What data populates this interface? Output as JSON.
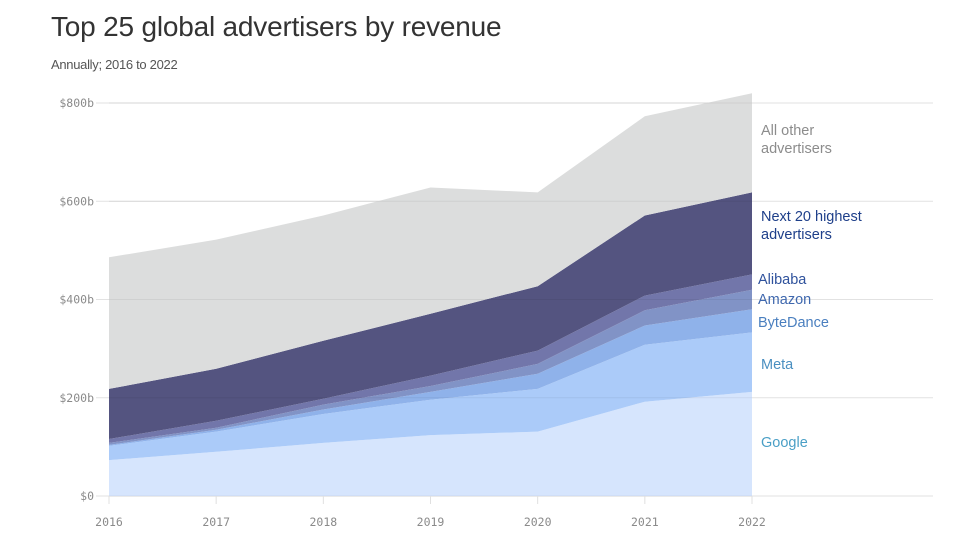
{
  "chart_data": {
    "type": "area",
    "stacked": true,
    "title": "Top 25 global advertisers by revenue",
    "subtitle": "Annually; 2016 to 2022",
    "xlabel": "",
    "ylabel": "",
    "x": [
      "2016",
      "2017",
      "2018",
      "2019",
      "2020",
      "2021",
      "2022"
    ],
    "ylim": [
      0,
      800
    ],
    "yticks": [
      {
        "value": 0,
        "label": "$0"
      },
      {
        "value": 200,
        "label": "$200b"
      },
      {
        "value": 400,
        "label": "$400b"
      },
      {
        "value": 600,
        "label": "$600b"
      },
      {
        "value": 800,
        "label": "$800b"
      }
    ],
    "grid": true,
    "legend": "direct-labels-right",
    "series": [
      {
        "name": "Google",
        "label_lines": [
          "Google"
        ],
        "color": "#d6e5fd",
        "label_color": "#4a9fc6",
        "values": [
          73,
          90,
          108,
          124,
          131,
          192,
          212
        ]
      },
      {
        "name": "Meta",
        "label_lines": [
          "Meta"
        ],
        "color": "#abcbf9",
        "label_color": "#4a8fc0",
        "values": [
          29,
          41,
          59,
          72,
          87,
          116,
          121
        ]
      },
      {
        "name": "ByteDance",
        "label_lines": [
          "ByteDance"
        ],
        "color": "#8fb2ea",
        "label_color": "#4a7fbf",
        "values": [
          2,
          4,
          9,
          16,
          31,
          39,
          47
        ]
      },
      {
        "name": "Amazon",
        "label_lines": [
          "Amazon"
        ],
        "color": "#8193c6",
        "label_color": "#3f68ae",
        "values": [
          4,
          4,
          10,
          12,
          20,
          31,
          40
        ]
      },
      {
        "name": "Alibaba",
        "label_lines": [
          "Alibaba"
        ],
        "color": "#7276aa",
        "label_color": "#2f529c",
        "values": [
          8,
          14,
          12,
          21,
          27,
          30,
          31
        ]
      },
      {
        "name": "Next 20 highest advertisers",
        "label_lines": [
          "Next 20 highest",
          "advertisers"
        ],
        "color": "#545480",
        "label_color": "#1e3f8a",
        "values": [
          102,
          106,
          118,
          126,
          131,
          163,
          167
        ]
      },
      {
        "name": "All other advertisers",
        "label_lines": [
          "All other",
          "advertisers"
        ],
        "color": "#dcdddd",
        "label_color": "#8c8c8c",
        "values": [
          268,
          263,
          255,
          257,
          191,
          202,
          202
        ]
      }
    ]
  }
}
